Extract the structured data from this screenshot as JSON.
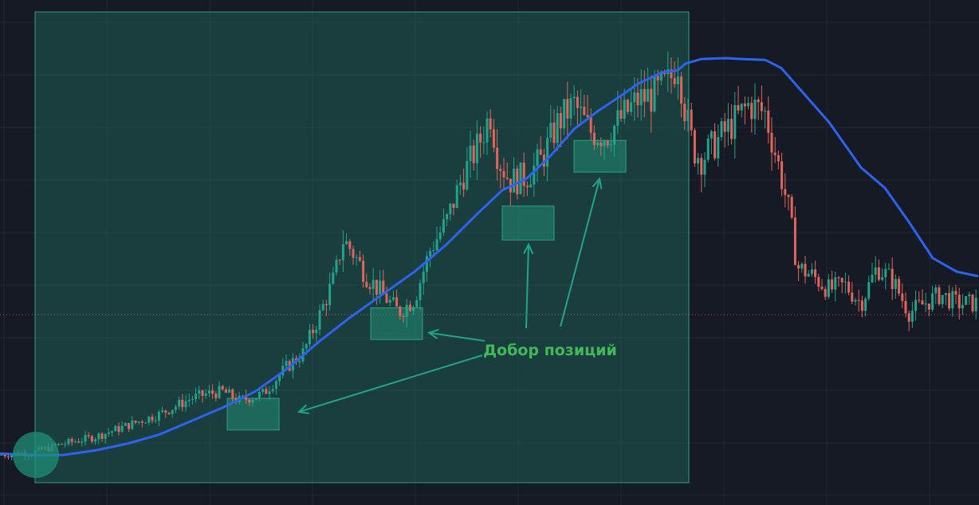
{
  "colors": {
    "background": "#161a25",
    "grid": "#222735",
    "highlight_fill": "#1f6b5c",
    "highlight_border": "#2f9f85",
    "zone_fill": "#238a74",
    "up_candle": "#22a38a",
    "down_candle": "#e0655c",
    "moving_average": "#2d63f0",
    "annotation_text": "#43b85a",
    "arrow": "#21a58a",
    "dotted_level": "#e0655c",
    "entry_circle": "#1f8f78"
  },
  "annotation": {
    "label": "Добор позиций"
  },
  "chart_data": {
    "type": "candlestick",
    "title": "",
    "xlabel": "",
    "ylabel": "",
    "grid": true,
    "indicator": "moving-average",
    "y_range": [
      0,
      100
    ],
    "price_trend": {
      "x": [
        0,
        40,
        80,
        120,
        160,
        200,
        240,
        260,
        280,
        300,
        330,
        360,
        380,
        400,
        420,
        430,
        440,
        460,
        480,
        500,
        520,
        540,
        560,
        580,
        600,
        615,
        625,
        640,
        660,
        680,
        700,
        720,
        740,
        760,
        780,
        800,
        820,
        840,
        850,
        860,
        870,
        880,
        900,
        920,
        940,
        960,
        980,
        990,
        1000,
        1020,
        1040,
        1060,
        1080,
        1100,
        1120,
        1140,
        1160,
        1180,
        1200,
        1227
      ],
      "y": [
        6.5,
        7,
        9,
        10.5,
        13,
        15.5,
        19,
        20,
        20.5,
        18.5,
        20,
        26,
        29,
        37,
        46,
        54,
        52,
        46,
        42,
        38,
        41,
        52,
        58,
        68,
        75,
        82,
        72,
        67,
        68,
        72,
        80,
        84,
        78,
        77,
        81,
        85,
        86,
        89,
        94,
        82,
        74,
        72,
        76,
        80,
        84,
        82,
        68,
        60,
        48,
        46,
        43,
        44,
        40,
        48,
        45,
        38,
        40,
        42,
        40,
        40
      ]
    },
    "moving_average": {
      "x": [
        0,
        30,
        50,
        80,
        120,
        160,
        200,
        240,
        280,
        320,
        360,
        400,
        440,
        480,
        520,
        560,
        600,
        630,
        660,
        690,
        720,
        750,
        780,
        800,
        830,
        850,
        860,
        880,
        910,
        930,
        960,
        980,
        1000,
        1040,
        1080,
        1110,
        1140,
        1170,
        1200,
        1227
      ],
      "y": [
        6.8,
        6.5,
        6.4,
        6.5,
        7.5,
        9,
        11,
        14,
        17,
        20.5,
        25.5,
        31.5,
        37,
        42,
        47,
        53,
        60,
        65,
        67.5,
        72.5,
        78.5,
        82.5,
        86,
        88.5,
        91,
        91.5,
        93,
        94,
        94.2,
        94,
        93.8,
        92,
        88,
        80,
        70,
        65.5,
        58,
        50,
        47,
        46
      ]
    },
    "highlight_zone": {
      "x_range": [
        40,
        860
      ],
      "y_range": [
        0,
        100
      ]
    },
    "entry_zones": [
      {
        "x_range": [
          285,
          350
        ],
        "y_range": [
          12,
          19
        ]
      },
      {
        "x_range": [
          465,
          530
        ],
        "y_range": [
          32,
          39
        ]
      },
      {
        "x_range": [
          630,
          695
        ],
        "y_range": [
          54,
          61.5
        ]
      },
      {
        "x_range": [
          720,
          785
        ],
        "y_range": [
          69,
          76
        ]
      }
    ],
    "dotted_level": 37.5,
    "entry_point": {
      "x": 45,
      "y": 6.5
    },
    "annotation_position": {
      "x": 690,
      "y": 28.5
    },
    "arrow_targets": [
      {
        "x": 375,
        "y": 16
      },
      {
        "x": 538,
        "y": 33.5
      },
      {
        "x": 663,
        "y": 53
      },
      {
        "x": 752,
        "y": 67.5
      }
    ]
  }
}
